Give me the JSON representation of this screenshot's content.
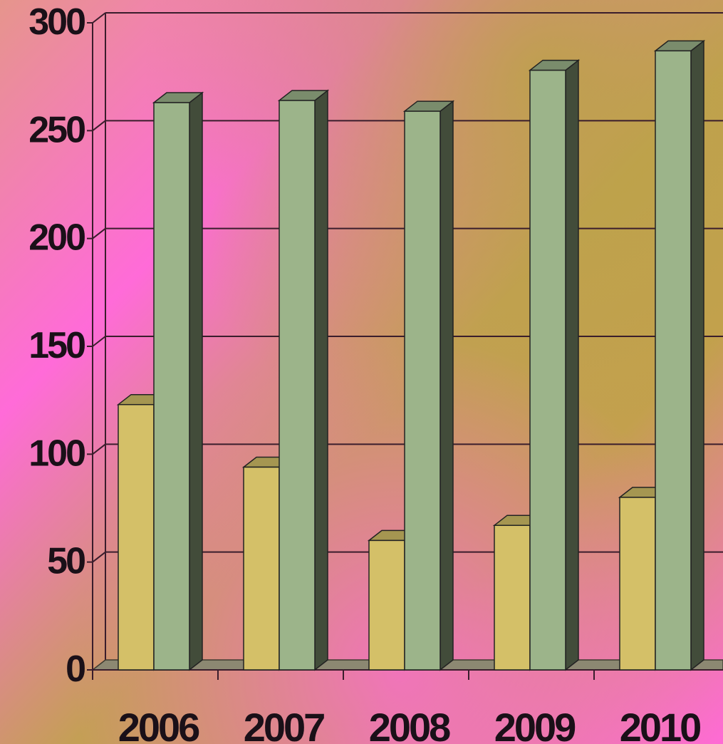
{
  "chart_data": {
    "type": "bar",
    "title": "",
    "xlabel": "",
    "ylabel": "",
    "categories": [
      "2006",
      "2007",
      "2008",
      "2009",
      "2010"
    ],
    "series": [
      {
        "values": [
          123,
          94,
          60,
          67,
          80
        ],
        "color": "#d4c068"
      },
      {
        "values": [
          263,
          264,
          259,
          278,
          287
        ],
        "color": "#9cb48a"
      }
    ],
    "ylim": [
      0,
      300
    ],
    "yticks": [
      0,
      50,
      100,
      150,
      200,
      250,
      300
    ],
    "grid": true,
    "legend": "none",
    "style": "3d-columns"
  },
  "colors": {
    "background_pink": "#ff6ad9",
    "background_olive": "#c4a24c",
    "background_peach": "#e49a84",
    "gridline": "#3a1d2c",
    "floor": "#8c8872",
    "text": "#1a1018"
  }
}
